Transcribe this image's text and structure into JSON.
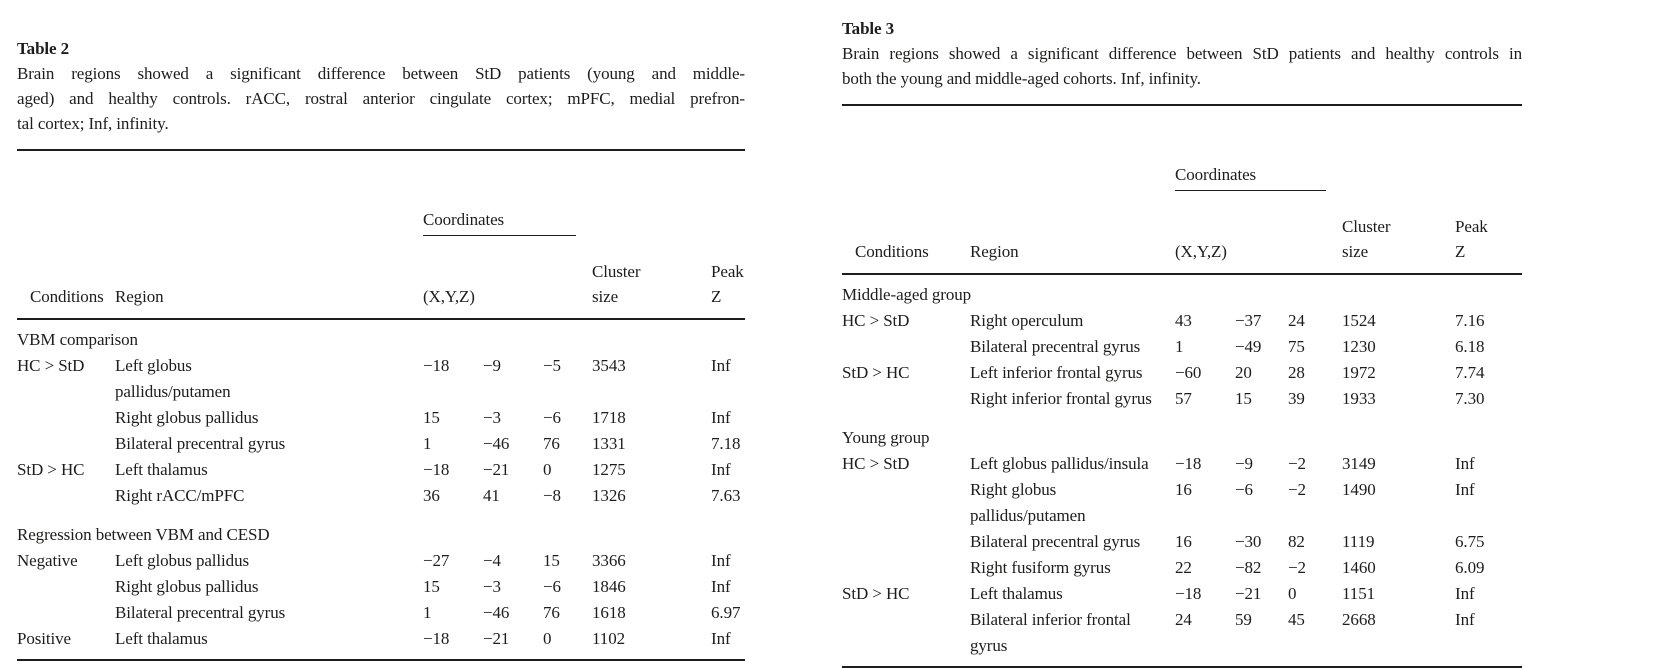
{
  "page": {
    "background": "#ffffff",
    "text_color": "#1d1d1b",
    "rule_color": "#1d1d1b"
  },
  "table2": {
    "heading": "Table 2",
    "caption_lines": [
      "Brain regions showed a significant difference between StD patients (young and middle-",
      "aged) and healthy controls. rACC, rostral anterior cingulate cortex; mPFC, medial prefron-",
      "tal cortex; Inf, infinity."
    ],
    "header": {
      "conditions": "Conditions",
      "region": "Region",
      "coordinates": "Coordinates",
      "xyz": "(X,Y,Z)",
      "cluster_l1": "Cluster",
      "cluster_l2": "size",
      "peak_l1": "Peak",
      "peak_l2": "Z"
    },
    "rows": [
      {
        "type": "section",
        "label": "VBM comparison"
      },
      {
        "cond": "HC > StD",
        "region": "Left globus\npallidus/putamen",
        "x": "−18",
        "y": "−9",
        "z": "−5",
        "cluster": "3543",
        "peak": "Inf"
      },
      {
        "cond": "",
        "region": "Right globus pallidus",
        "x": "15",
        "y": "−3",
        "z": "−6",
        "cluster": "1718",
        "peak": "Inf"
      },
      {
        "cond": "",
        "region": "Bilateral precentral gyrus",
        "x": "1",
        "y": "−46",
        "z": "76",
        "cluster": "1331",
        "peak": "7.18"
      },
      {
        "cond": "StD > HC",
        "region": "Left thalamus",
        "x": "−18",
        "y": "−21",
        "z": "0",
        "cluster": "1275",
        "peak": "Inf"
      },
      {
        "cond": "",
        "region": "Right rACC/mPFC",
        "x": "36",
        "y": "41",
        "z": "−8",
        "cluster": "1326",
        "peak": "7.63"
      },
      {
        "type": "spacer"
      },
      {
        "type": "section",
        "label": "Regression between VBM and CESD"
      },
      {
        "cond": "Negative",
        "region": "Left globus pallidus",
        "x": "−27",
        "y": "−4",
        "z": "15",
        "cluster": "3366",
        "peak": "Inf"
      },
      {
        "cond": "",
        "region": "Right globus pallidus",
        "x": "15",
        "y": "−3",
        "z": "−6",
        "cluster": "1846",
        "peak": "Inf"
      },
      {
        "cond": "",
        "region": "Bilateral precentral gyrus",
        "x": "1",
        "y": "−46",
        "z": "76",
        "cluster": "1618",
        "peak": "6.97"
      },
      {
        "cond": "Positive",
        "region": "Left thalamus",
        "x": "−18",
        "y": "−21",
        "z": "0",
        "cluster": "1102",
        "peak": "Inf"
      }
    ]
  },
  "table3": {
    "heading": "Table 3",
    "caption_lines": [
      "Brain regions showed a significant difference between StD patients and healthy controls in",
      "both the young and middle-aged cohorts. Inf, infinity."
    ],
    "header": {
      "conditions": "Conditions",
      "region": "Region",
      "coordinates": "Coordinates",
      "xyz": "(X,Y,Z)",
      "cluster_l1": "Cluster",
      "cluster_l2": "size",
      "peak_l1": "Peak",
      "peak_l2": "Z"
    },
    "rows": [
      {
        "type": "section",
        "label": "Middle-aged group"
      },
      {
        "cond": "HC > StD",
        "region": "Right operculum",
        "x": "43",
        "y": "−37",
        "z": "24",
        "cluster": "1524",
        "peak": "7.16"
      },
      {
        "cond": "",
        "region": "Bilateral precentral gyrus",
        "x": "1",
        "y": "−49",
        "z": "75",
        "cluster": "1230",
        "peak": "6.18"
      },
      {
        "cond": "StD > HC",
        "region": "Left inferior frontal gyrus",
        "x": "−60",
        "y": "20",
        "z": "28",
        "cluster": "1972",
        "peak": "7.74"
      },
      {
        "cond": "",
        "region": "Right inferior frontal gyrus",
        "x": "57",
        "y": "15",
        "z": "39",
        "cluster": "1933",
        "peak": "7.30"
      },
      {
        "type": "spacer"
      },
      {
        "type": "section",
        "label": "Young group"
      },
      {
        "cond": "HC > StD",
        "region": "Left globus pallidus/insula",
        "x": "−18",
        "y": "−9",
        "z": "−2",
        "cluster": "3149",
        "peak": "Inf"
      },
      {
        "cond": "",
        "region": "Right globus\npallidus/putamen",
        "x": "16",
        "y": "−6",
        "z": "−2",
        "cluster": "1490",
        "peak": "Inf"
      },
      {
        "cond": "",
        "region": "Bilateral precentral gyrus",
        "x": "16",
        "y": "−30",
        "z": "82",
        "cluster": "1119",
        "peak": "6.75"
      },
      {
        "cond": "",
        "region": "Right fusiform gyrus",
        "x": "22",
        "y": "−82",
        "z": "−2",
        "cluster": "1460",
        "peak": "6.09"
      },
      {
        "cond": "StD > HC",
        "region": "Left thalamus",
        "x": "−18",
        "y": "−21",
        "z": "0",
        "cluster": "1151",
        "peak": "Inf"
      },
      {
        "cond": "",
        "region": "Bilateral inferior frontal\ngyrus",
        "x": "24",
        "y": "59",
        "z": "45",
        "cluster": "2668",
        "peak": "Inf"
      }
    ]
  }
}
